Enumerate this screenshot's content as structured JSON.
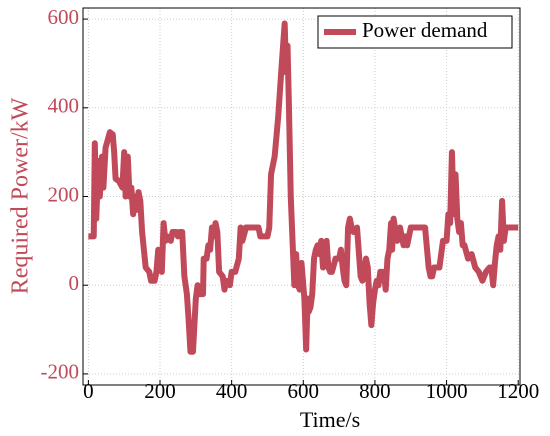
{
  "chart_data": {
    "type": "line",
    "xlabel": "Time/s",
    "ylabel": "Required Power/kW",
    "x": [
      0,
      15,
      18,
      22,
      28,
      32,
      38,
      42,
      48,
      55,
      60,
      68,
      72,
      76,
      85,
      95,
      100,
      104,
      110,
      115,
      120,
      125,
      130,
      135,
      140,
      145,
      150,
      155,
      160,
      170,
      175,
      185,
      190,
      195,
      200,
      205,
      210,
      215,
      220,
      230,
      235,
      245,
      250,
      255,
      262,
      268,
      275,
      280,
      285,
      292,
      298,
      300,
      305,
      310,
      320,
      322,
      330,
      335,
      340,
      345,
      350,
      355,
      360,
      365,
      375,
      380,
      385,
      395,
      400,
      410,
      420,
      425,
      430,
      440,
      460,
      475,
      480,
      500,
      505,
      510,
      520,
      530,
      540,
      548,
      552,
      556,
      560,
      565,
      570,
      575,
      580,
      585,
      590,
      595,
      600,
      603,
      608,
      612,
      615,
      620,
      625,
      630,
      635,
      640,
      645,
      650,
      655,
      660,
      665,
      670,
      675,
      680,
      690,
      700,
      705,
      710,
      715,
      720,
      725,
      730,
      735,
      740,
      750,
      760,
      765,
      770,
      775,
      780,
      785,
      790,
      795,
      800,
      805,
      810,
      815,
      820,
      825,
      830,
      835,
      840,
      845,
      848,
      852,
      858,
      862,
      870,
      880,
      885,
      890,
      900,
      920,
      940,
      950,
      955,
      960,
      965,
      970,
      980,
      990,
      995,
      1000,
      1005,
      1010,
      1015,
      1020,
      1025,
      1030,
      1035,
      1040,
      1045,
      1050,
      1060,
      1070,
      1080,
      1090,
      1100,
      1105,
      1110,
      1120,
      1125,
      1130,
      1135,
      1140,
      1145,
      1150,
      1155,
      1160,
      1165,
      1180,
      1200
    ],
    "series": [
      {
        "name": "Power demand",
        "color": "#c04a5a",
        "values": [
          110,
          110,
          320,
          150,
          280,
          200,
          290,
          220,
          310,
          330,
          345,
          340,
          300,
          240,
          235,
          220,
          300,
          200,
          290,
          200,
          220,
          160,
          200,
          170,
          210,
          190,
          120,
          80,
          40,
          30,
          10,
          10,
          30,
          80,
          60,
          30,
          140,
          100,
          110,
          100,
          120,
          120,
          110,
          120,
          120,
          20,
          -20,
          -80,
          -150,
          -150,
          -60,
          -30,
          0,
          -20,
          -20,
          60,
          60,
          90,
          80,
          130,
          110,
          140,
          120,
          30,
          20,
          -10,
          10,
          0,
          30,
          30,
          60,
          130,
          100,
          130,
          130,
          130,
          110,
          110,
          130,
          250,
          290,
          380,
          500,
          590,
          480,
          540,
          400,
          200,
          100,
          0,
          70,
          0,
          -10,
          50,
          0,
          -30,
          -145,
          -30,
          -60,
          -50,
          -20,
          60,
          80,
          90,
          70,
          100,
          40,
          50,
          100,
          40,
          30,
          30,
          60,
          60,
          80,
          40,
          10,
          0,
          130,
          150,
          130,
          120,
          130,
          20,
          10,
          30,
          60,
          40,
          -40,
          -90,
          -40,
          -10,
          10,
          0,
          30,
          30,
          30,
          -10,
          60,
          80,
          140,
          80,
          150,
          120,
          100,
          130,
          90,
          110,
          90,
          130,
          130,
          130,
          40,
          20,
          20,
          40,
          40,
          40,
          100,
          100,
          100,
          160,
          140,
          300,
          160,
          250,
          150,
          120,
          140,
          90,
          90,
          60,
          70,
          40,
          30,
          10,
          20,
          30,
          40,
          40,
          0,
          50,
          90,
          110,
          80,
          190,
          100,
          130,
          130,
          130
        ]
      }
    ],
    "xlim": [
      -15,
      1205
    ],
    "ylim": [
      -225,
      625
    ],
    "xticks": [
      0,
      200,
      400,
      600,
      800,
      1000,
      1200
    ],
    "yticks": [
      -200,
      0,
      200,
      400,
      600
    ],
    "grid": true,
    "legend": "upper right"
  }
}
